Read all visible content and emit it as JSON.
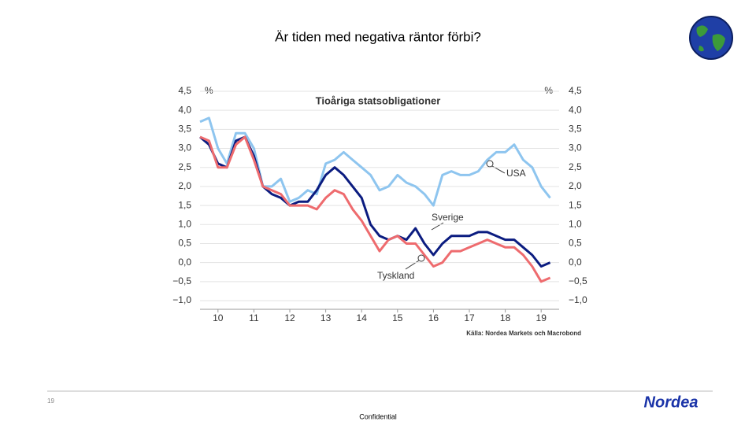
{
  "slide": {
    "title": "Är tiden med negativa räntor förbi?",
    "page_number": "19",
    "footer": "Confidential",
    "logo": "Nordea"
  },
  "chart_data": {
    "type": "line",
    "title": "Tioåriga statsobligationer",
    "y_unit": "%",
    "y2_unit": "%",
    "source": "Källa: Nordea Markets och Macrobond",
    "x": [
      10,
      10.25,
      10.5,
      10.75,
      11,
      11.25,
      11.5,
      11.75,
      12,
      12.25,
      12.5,
      12.75,
      13,
      13.25,
      13.5,
      13.75,
      14,
      14.25,
      14.5,
      14.75,
      15,
      15.25,
      15.5,
      15.75,
      16,
      16.25,
      16.5,
      16.75,
      17,
      17.25,
      17.5,
      17.75,
      18,
      18.25,
      18.5,
      18.75,
      19,
      19.25,
      19.5,
      19.75
    ],
    "series": [
      {
        "name": "USA",
        "color": "#8ec5ef",
        "values": [
          3.7,
          3.8,
          3.0,
          2.6,
          3.4,
          3.4,
          3.0,
          2.0,
          2.0,
          2.2,
          1.6,
          1.7,
          1.9,
          1.8,
          2.6,
          2.7,
          2.9,
          2.7,
          2.5,
          2.3,
          1.9,
          2.0,
          2.3,
          2.1,
          2.0,
          1.8,
          1.5,
          2.3,
          2.4,
          2.3,
          2.3,
          2.4,
          2.7,
          2.9,
          2.9,
          3.1,
          2.7,
          2.5,
          2.0,
          1.7
        ]
      },
      {
        "name": "Sverige",
        "color": "#0b1c80",
        "values": [
          3.3,
          3.1,
          2.6,
          2.5,
          3.2,
          3.3,
          2.8,
          2.0,
          1.8,
          1.7,
          1.5,
          1.6,
          1.6,
          1.9,
          2.3,
          2.5,
          2.3,
          2.0,
          1.7,
          1.0,
          0.7,
          0.6,
          0.7,
          0.6,
          0.9,
          0.5,
          0.2,
          0.5,
          0.7,
          0.7,
          0.7,
          0.8,
          0.8,
          0.7,
          0.6,
          0.6,
          0.4,
          0.2,
          -0.1,
          0.0
        ]
      },
      {
        "name": "Tyskland",
        "color": "#ee6b6e",
        "values": [
          3.3,
          3.2,
          2.5,
          2.5,
          3.1,
          3.3,
          2.7,
          2.0,
          1.9,
          1.8,
          1.5,
          1.5,
          1.5,
          1.4,
          1.7,
          1.9,
          1.8,
          1.4,
          1.1,
          0.7,
          0.3,
          0.6,
          0.7,
          0.5,
          0.5,
          0.2,
          -0.1,
          0.0,
          0.3,
          0.3,
          0.4,
          0.5,
          0.6,
          0.5,
          0.4,
          0.4,
          0.2,
          -0.1,
          -0.5,
          -0.4
        ]
      }
    ],
    "xlim": [
      10,
      20
    ],
    "xticks": [
      {
        "value": 10.5,
        "label": "10"
      },
      {
        "value": 11.5,
        "label": "11"
      },
      {
        "value": 12.5,
        "label": "12"
      },
      {
        "value": 13.5,
        "label": "13"
      },
      {
        "value": 14.5,
        "label": "14"
      },
      {
        "value": 15.5,
        "label": "15"
      },
      {
        "value": 16.5,
        "label": "16"
      },
      {
        "value": 17.5,
        "label": "17"
      },
      {
        "value": 18.5,
        "label": "18"
      },
      {
        "value": 19.5,
        "label": "19"
      }
    ],
    "ylim": [
      -1.0,
      4.5
    ],
    "yticks": [
      {
        "value": 4.5,
        "label": "4,5"
      },
      {
        "value": 4.0,
        "label": "4,0"
      },
      {
        "value": 3.5,
        "label": "3,5"
      },
      {
        "value": 3.0,
        "label": "3,0"
      },
      {
        "value": 2.5,
        "label": "2,5"
      },
      {
        "value": 2.0,
        "label": "2,0"
      },
      {
        "value": 1.5,
        "label": "1,5"
      },
      {
        "value": 1.0,
        "label": "1,0"
      },
      {
        "value": 0.5,
        "label": "0,5"
      },
      {
        "value": 0.0,
        "label": "0,0"
      },
      {
        "value": -0.5,
        "label": "−0,5"
      },
      {
        "value": -1.0,
        "label": "−1,0"
      }
    ],
    "y2lim": [
      -1.0,
      4.5
    ],
    "y2ticks": [
      {
        "value": 4.5,
        "label": "4,5"
      },
      {
        "value": 4.0,
        "label": "4,0"
      },
      {
        "value": 3.5,
        "label": "3,5"
      },
      {
        "value": 3.0,
        "label": "3,0"
      },
      {
        "value": 2.5,
        "label": "2,5"
      },
      {
        "value": 2.0,
        "label": "2,0"
      },
      {
        "value": 1.5,
        "label": "1,5"
      },
      {
        "value": 1.0,
        "label": "1,0"
      },
      {
        "value": 0.5,
        "label": "0,5"
      },
      {
        "value": 0.0,
        "label": "0,0"
      },
      {
        "value": -0.5,
        "label": "−0,5"
      },
      {
        "value": -1.0,
        "label": "−1,0"
      }
    ],
    "grid": true
  }
}
